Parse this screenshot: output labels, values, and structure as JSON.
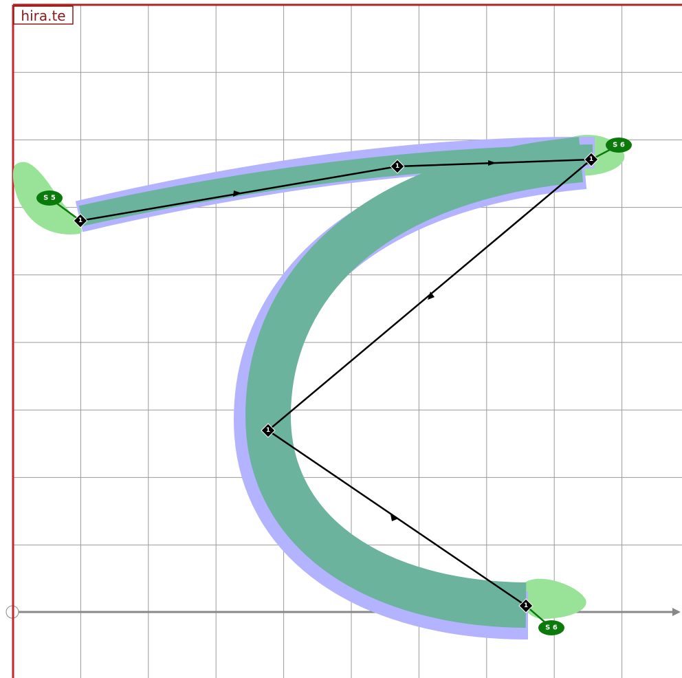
{
  "header": {
    "title": "hira.te"
  },
  "nodes": [
    {
      "label": "1"
    },
    {
      "label": "1"
    },
    {
      "label": "1"
    },
    {
      "label": "1"
    },
    {
      "label": "1"
    }
  ],
  "stroke_labels": [
    "S 5",
    "S 6",
    "S 6"
  ]
}
